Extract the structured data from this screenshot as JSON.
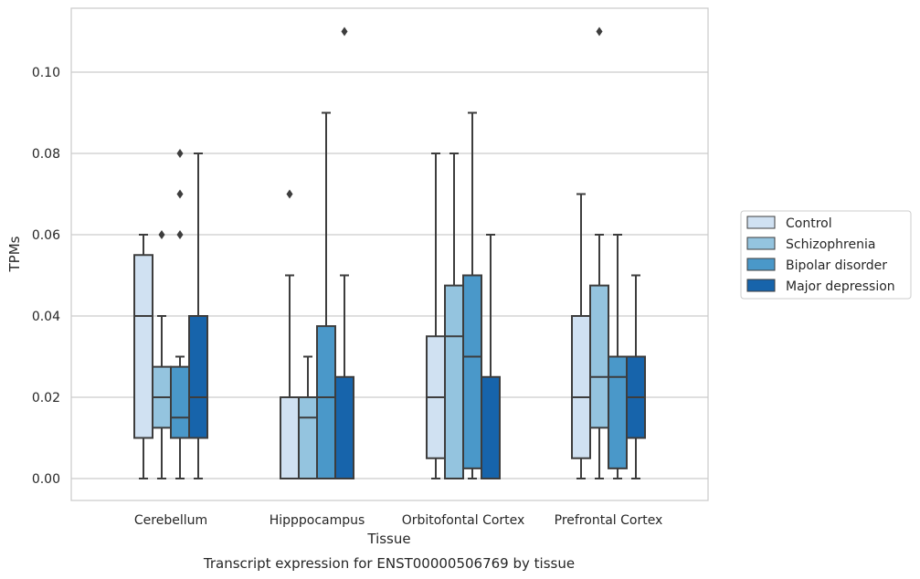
{
  "caption": "Transcript expression for ENST00000506769 by tissue",
  "chart_data": {
    "type": "box",
    "xlabel": "Tissue",
    "ylabel": "TPMs",
    "ylim": [
      -0.005,
      0.1155
    ],
    "yticks": [
      "0.00",
      "0.02",
      "0.04",
      "0.06",
      "0.08",
      "0.10"
    ],
    "grid": "horizontal",
    "legend_placement": "right",
    "categories": [
      "Cerebellum",
      "Hipppocampus",
      "Orbitofontal Cortex",
      "Prefrontal Cortex"
    ],
    "series": [
      {
        "name": "Control",
        "color": "#d0e1f2",
        "boxes": [
          {
            "whisker_low": 0.0,
            "q1": 0.01,
            "median": 0.04,
            "q3": 0.055,
            "whisker_high": 0.06,
            "outliers": []
          },
          {
            "whisker_low": 0.0,
            "q1": 0.0,
            "median": 0.02,
            "q3": 0.02,
            "whisker_high": 0.05,
            "outliers": [
              0.07
            ]
          },
          {
            "whisker_low": 0.0,
            "q1": 0.005,
            "median": 0.02,
            "q3": 0.035,
            "whisker_high": 0.08,
            "outliers": []
          },
          {
            "whisker_low": 0.0,
            "q1": 0.005,
            "median": 0.02,
            "q3": 0.04,
            "whisker_high": 0.07,
            "outliers": []
          }
        ]
      },
      {
        "name": "Schizophrenia",
        "color": "#94c4df",
        "boxes": [
          {
            "whisker_low": 0.0,
            "q1": 0.0125,
            "median": 0.02,
            "q3": 0.0275,
            "whisker_high": 0.04,
            "outliers": [
              0.06
            ]
          },
          {
            "whisker_low": 0.0,
            "q1": 0.0,
            "median": 0.015,
            "q3": 0.02,
            "whisker_high": 0.03,
            "outliers": []
          },
          {
            "whisker_low": 0.0,
            "q1": 0.0,
            "median": 0.035,
            "q3": 0.0475,
            "whisker_high": 0.08,
            "outliers": []
          },
          {
            "whisker_low": 0.0,
            "q1": 0.0125,
            "median": 0.025,
            "q3": 0.0475,
            "whisker_high": 0.06,
            "outliers": [
              0.11
            ]
          }
        ]
      },
      {
        "name": "Bipolar disorder",
        "color": "#4a98c9",
        "boxes": [
          {
            "whisker_low": 0.0,
            "q1": 0.01,
            "median": 0.015,
            "q3": 0.0275,
            "whisker_high": 0.03,
            "outliers": [
              0.06,
              0.07,
              0.08
            ]
          },
          {
            "whisker_low": 0.0,
            "q1": 0.0,
            "median": 0.02,
            "q3": 0.0375,
            "whisker_high": 0.09,
            "outliers": []
          },
          {
            "whisker_low": 0.0,
            "q1": 0.0025,
            "median": 0.03,
            "q3": 0.05,
            "whisker_high": 0.09,
            "outliers": []
          },
          {
            "whisker_low": 0.0,
            "q1": 0.0025,
            "median": 0.025,
            "q3": 0.03,
            "whisker_high": 0.06,
            "outliers": []
          }
        ]
      },
      {
        "name": "Major depression",
        "color": "#1764ab",
        "boxes": [
          {
            "whisker_low": 0.0,
            "q1": 0.01,
            "median": 0.02,
            "q3": 0.04,
            "whisker_high": 0.08,
            "outliers": []
          },
          {
            "whisker_low": 0.0,
            "q1": 0.0,
            "median": 0.0,
            "q3": 0.025,
            "whisker_high": 0.05,
            "outliers": [
              0.11
            ]
          },
          {
            "whisker_low": 0.0,
            "q1": 0.0,
            "median": 0.0,
            "q3": 0.025,
            "whisker_high": 0.06,
            "outliers": []
          },
          {
            "whisker_low": 0.0,
            "q1": 0.01,
            "median": 0.02,
            "q3": 0.03,
            "whisker_high": 0.05,
            "outliers": []
          }
        ]
      }
    ]
  }
}
